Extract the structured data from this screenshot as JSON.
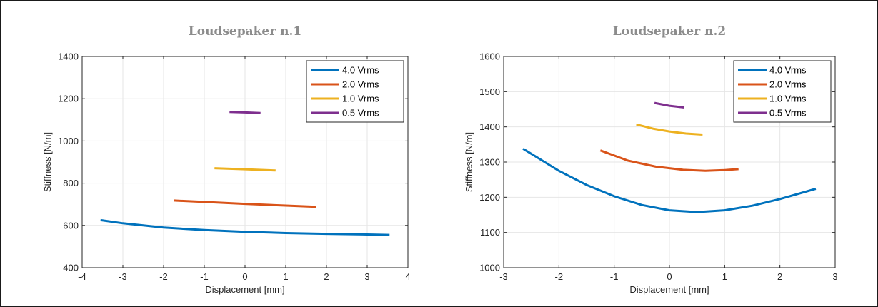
{
  "chart_data": [
    {
      "type": "line",
      "title": "Loudsepaker n.1",
      "xlabel": "Displacement [mm]",
      "ylabel": "Stiffness [N/m]",
      "xlim": [
        -4,
        4
      ],
      "ylim": [
        400,
        1400
      ],
      "xticks": [
        -4,
        -3,
        -2,
        -1,
        0,
        1,
        2,
        3,
        4
      ],
      "yticks": [
        400,
        600,
        800,
        1000,
        1200,
        1400
      ],
      "grid": true,
      "legend_position": "top-right",
      "series": [
        {
          "name": "4.0 Vrms",
          "color": "#0072BD",
          "x": [
            -3.55,
            -3,
            -2,
            -1,
            0,
            1,
            2,
            3,
            3.55
          ],
          "y": [
            625,
            610,
            590,
            578,
            570,
            564,
            560,
            557,
            555
          ]
        },
        {
          "name": "2.0 Vrms",
          "color": "#D95319",
          "x": [
            -1.75,
            -1,
            0,
            1,
            1.75
          ],
          "y": [
            718,
            711,
            702,
            694,
            688
          ]
        },
        {
          "name": "1.0 Vrms",
          "color": "#EDB120",
          "x": [
            -0.75,
            0,
            0.75
          ],
          "y": [
            871,
            866,
            860
          ]
        },
        {
          "name": "0.5 Vrms",
          "color": "#7E2F8E",
          "x": [
            -0.38,
            0,
            0.38
          ],
          "y": [
            1137,
            1135,
            1132
          ]
        }
      ]
    },
    {
      "type": "line",
      "title": "Loudsepaker n.2",
      "xlabel": "Displacement [mm]",
      "ylabel": "Stiffness [N/m]",
      "xlim": [
        -3,
        3
      ],
      "ylim": [
        1000,
        1600
      ],
      "xticks": [
        -3,
        -2,
        -1,
        0,
        1,
        2,
        3
      ],
      "yticks": [
        1000,
        1100,
        1200,
        1300,
        1400,
        1500,
        1600
      ],
      "grid": true,
      "legend_position": "top-right",
      "series": [
        {
          "name": "4.0 Vrms",
          "color": "#0072BD",
          "x": [
            -2.65,
            -2,
            -1.5,
            -1,
            -0.5,
            0,
            0.5,
            1,
            1.5,
            2,
            2.65
          ],
          "y": [
            1338,
            1275,
            1235,
            1203,
            1178,
            1163,
            1158,
            1163,
            1176,
            1195,
            1224
          ]
        },
        {
          "name": "2.0 Vrms",
          "color": "#D95319",
          "x": [
            -1.25,
            -0.75,
            -0.25,
            0.25,
            0.65,
            1,
            1.25
          ],
          "y": [
            1333,
            1304,
            1287,
            1278,
            1275,
            1277,
            1280
          ]
        },
        {
          "name": "1.0 Vrms",
          "color": "#EDB120",
          "x": [
            -0.6,
            -0.3,
            0,
            0.3,
            0.6
          ],
          "y": [
            1407,
            1395,
            1387,
            1381,
            1378
          ]
        },
        {
          "name": "0.5 Vrms",
          "color": "#7E2F8E",
          "x": [
            -0.27,
            0,
            0.27
          ],
          "y": [
            1468,
            1460,
            1455
          ]
        }
      ]
    }
  ]
}
